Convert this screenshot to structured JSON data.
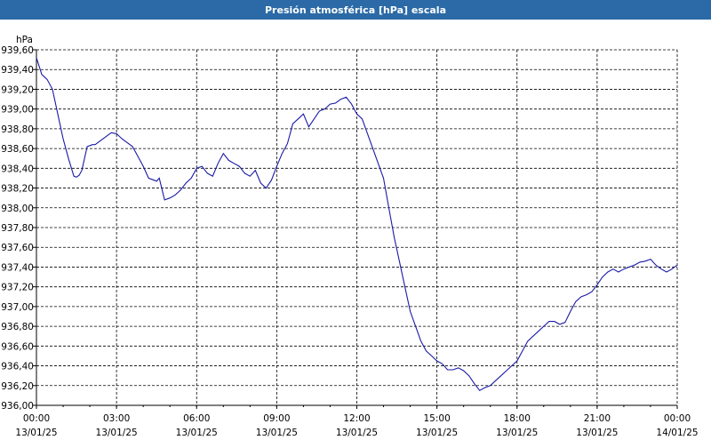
{
  "window": {
    "title": "Presión atmosférica [hPa] escala"
  },
  "chart_data": {
    "type": "line",
    "title": "Presión atmosférica [hPa] escala",
    "ylabel": "hPa",
    "xlabel": "",
    "ylim": [
      936.0,
      939.6
    ],
    "yticks": [
      "939,60",
      "939,40",
      "939,20",
      "939,00",
      "938,80",
      "938,60",
      "938,40",
      "938,20",
      "938,00",
      "937,80",
      "937,60",
      "937,40",
      "937,20",
      "937,00",
      "936,80",
      "936,60",
      "936,40",
      "936,20",
      "936,00"
    ],
    "xticks": [
      {
        "time": "00:00",
        "date": "13/01/25"
      },
      {
        "time": "03:00",
        "date": "13/01/25"
      },
      {
        "time": "06:00",
        "date": "13/01/25"
      },
      {
        "time": "09:00",
        "date": "13/01/25"
      },
      {
        "time": "12:00",
        "date": "13/01/25"
      },
      {
        "time": "15:00",
        "date": "13/01/25"
      },
      {
        "time": "18:00",
        "date": "13/01/25"
      },
      {
        "time": "21:00",
        "date": "13/01/25"
      },
      {
        "time": "00:00",
        "date": "14/01/25"
      }
    ],
    "xlim_hours": [
      0,
      24
    ],
    "grid": true,
    "line_color": "#1a1aa6",
    "series": [
      {
        "x": [
          0,
          0.2,
          0.4,
          0.6,
          0.8,
          1.0,
          1.2,
          1.4,
          1.5,
          1.6,
          1.7,
          1.8,
          1.9,
          2.0,
          2.1,
          2.2,
          2.4,
          2.6,
          2.8,
          3.0,
          3.2,
          3.4,
          3.6,
          3.8,
          4.0,
          4.2,
          4.4,
          4.5,
          4.6,
          4.8,
          5.0,
          5.2,
          5.4,
          5.6,
          5.8,
          6.0,
          6.2,
          6.4,
          6.6,
          6.8,
          7.0,
          7.2,
          7.4,
          7.6,
          7.8,
          8.0,
          8.2,
          8.4,
          8.6,
          8.8,
          9.0,
          9.2,
          9.4,
          9.6,
          9.8,
          10.0,
          10.2,
          10.4,
          10.6,
          10.8,
          11.0,
          11.2,
          11.4,
          11.6,
          11.8,
          12.0,
          12.2,
          12.4,
          12.6,
          12.8,
          13.0,
          13.2,
          13.4,
          13.6,
          13.8,
          14.0,
          14.2,
          14.4,
          14.6,
          14.8,
          15.0,
          15.2,
          15.4,
          15.6,
          15.8,
          16.0,
          16.2,
          16.4,
          16.6,
          16.8,
          17.0,
          17.2,
          17.4,
          17.6,
          17.8,
          18.0,
          18.2,
          18.4,
          18.6,
          18.8,
          19.0,
          19.2,
          19.4,
          19.6,
          19.8,
          20.0,
          20.2,
          20.4,
          20.6,
          20.8,
          21.0,
          21.2,
          21.4,
          21.6,
          21.8,
          22.0,
          22.2,
          22.4,
          22.6,
          22.8,
          23.0,
          23.2,
          23.4,
          23.6,
          23.8,
          24.0
        ],
        "y": [
          939.52,
          939.35,
          939.3,
          939.2,
          938.95,
          938.7,
          938.5,
          938.32,
          938.31,
          938.33,
          938.38,
          938.5,
          938.62,
          938.63,
          938.64,
          938.64,
          938.68,
          938.72,
          938.76,
          938.75,
          938.7,
          938.66,
          938.62,
          938.52,
          938.42,
          938.3,
          938.28,
          938.27,
          938.3,
          938.08,
          938.1,
          938.13,
          938.18,
          938.25,
          938.3,
          938.4,
          938.42,
          938.35,
          938.32,
          938.45,
          938.55,
          938.48,
          938.45,
          938.42,
          938.35,
          938.32,
          938.38,
          938.25,
          938.2,
          938.28,
          938.42,
          938.55,
          938.65,
          938.85,
          938.9,
          938.95,
          938.82,
          938.9,
          938.98,
          939.0,
          939.05,
          939.06,
          939.1,
          939.12,
          939.05,
          938.95,
          938.9,
          938.75,
          938.6,
          938.45,
          938.3,
          938.0,
          937.7,
          937.45,
          937.2,
          936.95,
          936.8,
          936.65,
          936.55,
          936.5,
          936.45,
          936.42,
          936.36,
          936.36,
          936.38,
          936.35,
          936.3,
          936.22,
          936.15,
          936.18,
          936.2,
          936.25,
          936.3,
          936.35,
          936.4,
          936.45,
          936.55,
          936.65,
          936.7,
          936.75,
          936.8,
          936.85,
          936.85,
          936.82,
          936.84,
          936.95,
          937.05,
          937.1,
          937.12,
          937.15,
          937.22,
          937.3,
          937.35,
          937.38,
          937.35,
          937.38,
          937.4,
          937.42,
          937.45,
          937.46,
          937.48,
          937.42,
          937.38,
          937.35,
          937.38,
          937.42
        ]
      }
    ]
  }
}
